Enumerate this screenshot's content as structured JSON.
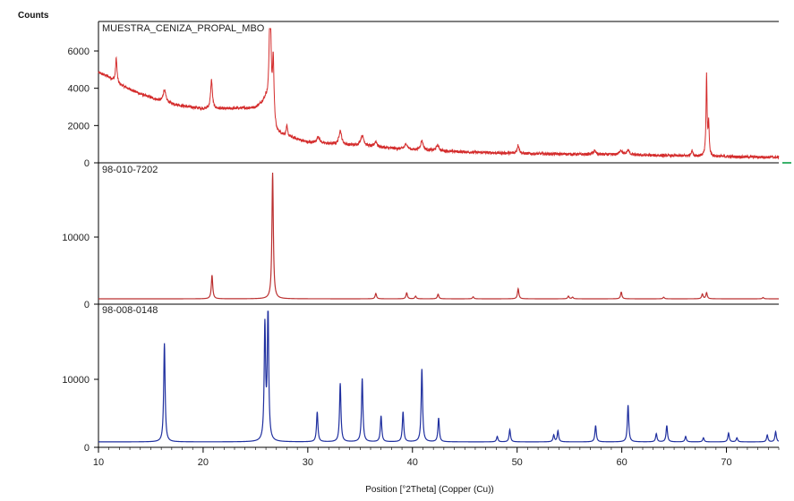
{
  "y_axis_title": "Counts",
  "x_axis_title": "Position [°2Theta] (Copper (Cu))",
  "colors": {
    "sample": "#d42c2c",
    "ref1": "#bb3030",
    "ref2": "#1f2f9f",
    "divider": "#000000",
    "marker": "#3bb26b"
  },
  "chart_data": [
    {
      "type": "line",
      "panel_label": "MUESTRA_CENIZA_PROPAL_MBO",
      "xlim": [
        10,
        75
      ],
      "ylim": [
        0,
        7200
      ],
      "yticks": [
        0,
        2000,
        4000,
        6000
      ],
      "baseline": [
        [
          10,
          4850
        ],
        [
          11,
          4600
        ],
        [
          12,
          4200
        ],
        [
          14,
          3700
        ],
        [
          16,
          3300
        ],
        [
          18,
          3050
        ],
        [
          20,
          2900
        ],
        [
          22,
          2900
        ],
        [
          25,
          2950
        ],
        [
          26,
          3350
        ],
        [
          27,
          1600
        ],
        [
          30,
          1100
        ],
        [
          35,
          900
        ],
        [
          40,
          700
        ],
        [
          45,
          580
        ],
        [
          50,
          500
        ],
        [
          60,
          430
        ],
        [
          70,
          330
        ],
        [
          75,
          300
        ]
      ],
      "peaks": [
        {
          "x": 11.7,
          "h": 1300,
          "w": 0.08
        },
        {
          "x": 16.3,
          "h": 650,
          "w": 0.15
        },
        {
          "x": 20.8,
          "h": 1550,
          "w": 0.1
        },
        {
          "x": 26.4,
          "h": 6500,
          "w": 0.1
        },
        {
          "x": 26.7,
          "h": 3200,
          "w": 0.08
        },
        {
          "x": 28.0,
          "h": 500,
          "w": 0.08
        },
        {
          "x": 31.0,
          "h": 350,
          "w": 0.15
        },
        {
          "x": 33.1,
          "h": 750,
          "w": 0.15
        },
        {
          "x": 35.2,
          "h": 550,
          "w": 0.2
        },
        {
          "x": 36.5,
          "h": 300,
          "w": 0.15
        },
        {
          "x": 39.4,
          "h": 300,
          "w": 0.15
        },
        {
          "x": 40.9,
          "h": 500,
          "w": 0.15
        },
        {
          "x": 42.4,
          "h": 300,
          "w": 0.15
        },
        {
          "x": 50.1,
          "h": 450,
          "w": 0.12
        },
        {
          "x": 57.4,
          "h": 200,
          "w": 0.15
        },
        {
          "x": 59.9,
          "h": 250,
          "w": 0.15
        },
        {
          "x": 60.6,
          "h": 250,
          "w": 0.15
        },
        {
          "x": 66.7,
          "h": 300,
          "w": 0.1
        },
        {
          "x": 68.1,
          "h": 4300,
          "w": 0.06
        },
        {
          "x": 68.3,
          "h": 1700,
          "w": 0.06
        }
      ]
    },
    {
      "type": "line",
      "panel_label": "98-010-7202",
      "xlim": [
        10,
        75
      ],
      "ylim": [
        0,
        20000
      ],
      "yticks": [
        0,
        10000
      ],
      "baseline": [
        [
          10,
          800
        ],
        [
          75,
          800
        ]
      ],
      "peaks": [
        {
          "x": 20.85,
          "h": 3500,
          "w": 0.08
        },
        {
          "x": 26.64,
          "h": 18800,
          "w": 0.08
        },
        {
          "x": 36.5,
          "h": 800,
          "w": 0.08
        },
        {
          "x": 39.45,
          "h": 900,
          "w": 0.08
        },
        {
          "x": 40.3,
          "h": 400,
          "w": 0.08
        },
        {
          "x": 42.45,
          "h": 700,
          "w": 0.08
        },
        {
          "x": 45.8,
          "h": 300,
          "w": 0.08
        },
        {
          "x": 50.1,
          "h": 1500,
          "w": 0.08
        },
        {
          "x": 54.9,
          "h": 400,
          "w": 0.08
        },
        {
          "x": 55.3,
          "h": 250,
          "w": 0.08
        },
        {
          "x": 59.95,
          "h": 1000,
          "w": 0.08
        },
        {
          "x": 64.0,
          "h": 250,
          "w": 0.08
        },
        {
          "x": 67.7,
          "h": 700,
          "w": 0.08
        },
        {
          "x": 68.1,
          "h": 900,
          "w": 0.08
        },
        {
          "x": 73.5,
          "h": 200,
          "w": 0.08
        }
      ]
    },
    {
      "type": "line",
      "panel_label": "98-008-0148",
      "xlim": [
        10,
        75
      ],
      "ylim": [
        0,
        20000
      ],
      "yticks": [
        0,
        10000
      ],
      "baseline": [
        [
          10,
          800
        ],
        [
          75,
          800
        ]
      ],
      "peaks": [
        {
          "x": 16.3,
          "h": 14500,
          "w": 0.08
        },
        {
          "x": 25.9,
          "h": 16800,
          "w": 0.08
        },
        {
          "x": 26.2,
          "h": 19500,
          "w": 0.08
        },
        {
          "x": 30.9,
          "h": 4400,
          "w": 0.08
        },
        {
          "x": 33.1,
          "h": 8600,
          "w": 0.08
        },
        {
          "x": 35.2,
          "h": 9300,
          "w": 0.08
        },
        {
          "x": 37.0,
          "h": 3800,
          "w": 0.08
        },
        {
          "x": 39.1,
          "h": 4400,
          "w": 0.08
        },
        {
          "x": 40.9,
          "h": 10700,
          "w": 0.08
        },
        {
          "x": 42.5,
          "h": 3500,
          "w": 0.08
        },
        {
          "x": 48.1,
          "h": 800,
          "w": 0.08
        },
        {
          "x": 49.3,
          "h": 1800,
          "w": 0.08
        },
        {
          "x": 53.5,
          "h": 1000,
          "w": 0.08
        },
        {
          "x": 53.9,
          "h": 1600,
          "w": 0.08
        },
        {
          "x": 57.5,
          "h": 2400,
          "w": 0.08
        },
        {
          "x": 60.6,
          "h": 5400,
          "w": 0.08
        },
        {
          "x": 63.3,
          "h": 1200,
          "w": 0.08
        },
        {
          "x": 64.3,
          "h": 2400,
          "w": 0.08
        },
        {
          "x": 66.1,
          "h": 800,
          "w": 0.08
        },
        {
          "x": 67.8,
          "h": 600,
          "w": 0.08
        },
        {
          "x": 70.2,
          "h": 1300,
          "w": 0.08
        },
        {
          "x": 71.0,
          "h": 600,
          "w": 0.08
        },
        {
          "x": 73.9,
          "h": 1000,
          "w": 0.08
        },
        {
          "x": 74.7,
          "h": 1500,
          "w": 0.08
        }
      ]
    }
  ],
  "x_axis": {
    "xlim": [
      10,
      75
    ],
    "ticks": [
      10,
      20,
      30,
      40,
      50,
      60,
      70
    ]
  }
}
